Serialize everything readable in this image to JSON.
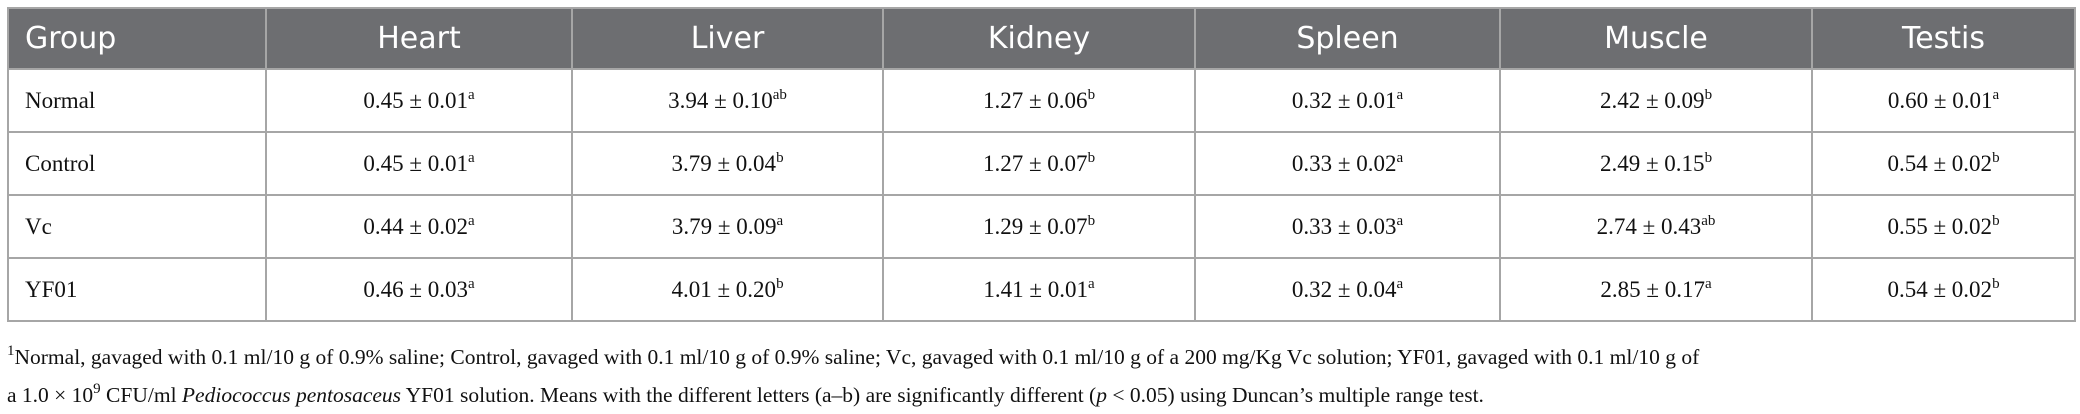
{
  "table": {
    "header": [
      "Group",
      "Heart",
      "Liver",
      "Kidney",
      "Spleen",
      "Muscle",
      "Testis"
    ],
    "rows": [
      [
        "Normal",
        {
          "value": "0.45 ± 0.01",
          "sup": "a"
        },
        {
          "value": "3.94 ± 0.10",
          "sup": "ab"
        },
        {
          "value": "1.27 ± 0.06",
          "sup": "b"
        },
        {
          "value": "0.32 ± 0.01",
          "sup": "a"
        },
        {
          "value": "2.42 ± 0.09",
          "sup": "b"
        },
        {
          "value": "0.60 ± 0.01",
          "sup": "a"
        }
      ],
      [
        "Control",
        {
          "value": "0.45 ± 0.01",
          "sup": "a"
        },
        {
          "value": "3.79 ± 0.04",
          "sup": "b"
        },
        {
          "value": "1.27 ± 0.07",
          "sup": "b"
        },
        {
          "value": "0.33 ± 0.02",
          "sup": "a"
        },
        {
          "value": "2.49 ± 0.15",
          "sup": "b"
        },
        {
          "value": "0.54 ± 0.02",
          "sup": "b"
        }
      ],
      [
        "Vc",
        {
          "value": "0.44 ± 0.02",
          "sup": "a"
        },
        {
          "value": "3.79 ± 0.09",
          "sup": "a"
        },
        {
          "value": "1.29 ± 0.07",
          "sup": "b"
        },
        {
          "value": "0.33 ± 0.03",
          "sup": "a"
        },
        {
          "value": "2.74 ± 0.43",
          "sup": "ab"
        },
        {
          "value": "0.55 ± 0.02",
          "sup": "b"
        }
      ],
      [
        "YF01",
        {
          "value": "0.46 ± 0.03",
          "sup": "a"
        },
        {
          "value": "4.01 ± 0.20",
          "sup": "b"
        },
        {
          "value": "1.41 ± 0.01",
          "sup": "a"
        },
        {
          "value": "0.32 ± 0.04",
          "sup": "a"
        },
        {
          "value": "2.85 ± 0.17",
          "sup": "a"
        },
        {
          "value": "0.54 ± 0.02",
          "sup": "b"
        }
      ]
    ]
  },
  "footnote": {
    "marker": "1",
    "line1": "Normal, gavaged with 0.1 ml/10 g of 0.9% saline; Control, gavaged with 0.1 ml/10 g of 0.9% saline; Vc, gavaged with 0.1 ml/10 g of a 200 mg/Kg Vc solution; YF01, gavaged with 0.1 ml/10 g of",
    "line2_start": "a 1.0 × 10",
    "exponent": "9",
    "line2_mid": " CFU/ml ",
    "species": "Pediococcus pentosaceus",
    "line2_cont": " YF01 solution. Means with the different letters (a–b) are significantly different (",
    "p": "p",
    "line2_end": " < 0.05) using Duncan’s multiple range test."
  }
}
